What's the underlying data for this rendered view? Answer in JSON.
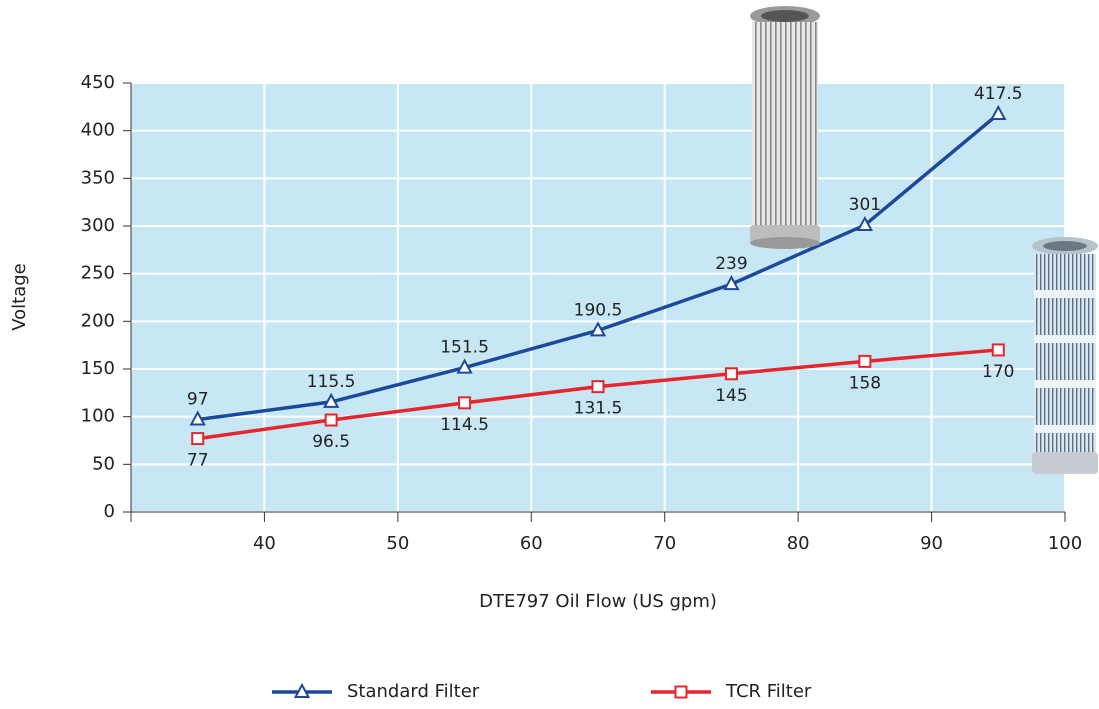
{
  "chart_data": {
    "type": "line",
    "x_label": "DTE797 Oil Flow (US gpm)",
    "y_label": "Voltage",
    "x": [
      35,
      45,
      55,
      65,
      75,
      85,
      95
    ],
    "series": [
      {
        "name": "Standard Filter",
        "color": "#1b4a9b",
        "marker": "triangle",
        "values": [
          97,
          115.5,
          151.5,
          190.5,
          239,
          301,
          417.5
        ]
      },
      {
        "name": "TCR Filter",
        "color": "#e5262e",
        "marker": "square",
        "values": [
          77,
          96.5,
          114.5,
          131.5,
          145,
          158,
          170
        ]
      }
    ],
    "xlim": [
      30,
      100
    ],
    "xticks": [
      40,
      50,
      60,
      70,
      80,
      90,
      100
    ],
    "ylim": [
      0,
      450
    ],
    "yticks": [
      0,
      50,
      100,
      150,
      200,
      250,
      300,
      350,
      400,
      450
    ],
    "grid": true,
    "legend": "bottom"
  }
}
